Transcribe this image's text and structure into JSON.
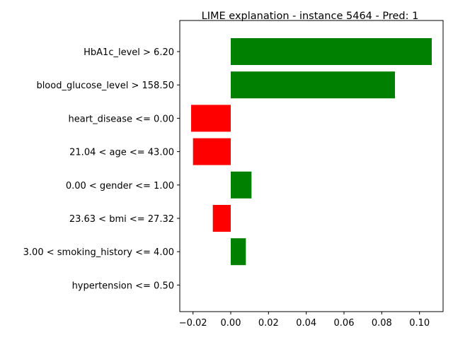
{
  "chart_data": {
    "type": "bar",
    "orientation": "horizontal",
    "title": "LIME explanation - instance 5464 - Pred: 1",
    "xlabel": "",
    "ylabel": "",
    "categories": [
      "HbA1c_level > 6.20",
      "blood_glucose_level > 158.50",
      "heart_disease <= 0.00",
      "21.04 < age <= 43.00",
      "0.00 < gender <= 1.00",
      "23.63 < bmi <= 27.32",
      "3.00 < smoking_history <= 4.00",
      "hypertension <= 0.50"
    ],
    "values": [
      0.1065,
      0.087,
      -0.021,
      -0.02,
      0.011,
      -0.0095,
      0.008,
      0.0
    ],
    "xlim": [
      -0.027,
      0.1125
    ],
    "xticks": [
      -0.02,
      0.0,
      0.02,
      0.04,
      0.06,
      0.08,
      0.1
    ],
    "xtick_labels": [
      "−0.02",
      "0.00",
      "0.02",
      "0.04",
      "0.06",
      "0.08",
      "0.10"
    ],
    "positive_color": "#008000",
    "negative_color": "#ff0000",
    "grid": false,
    "legend": "none"
  }
}
